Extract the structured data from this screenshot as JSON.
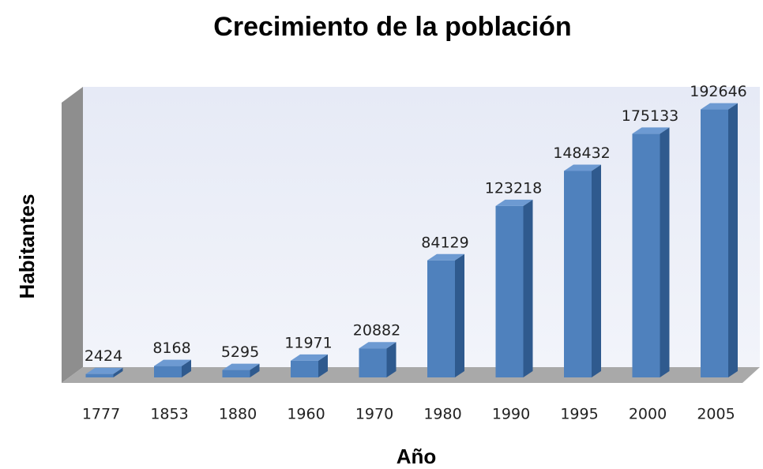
{
  "chart_data": {
    "type": "bar3d",
    "title": "Crecimiento de la población",
    "x_label": "Año",
    "y_label": "Habitantes",
    "categories": [
      "1777",
      "1853",
      "1880",
      "1960",
      "1970",
      "1980",
      "1990",
      "1995",
      "2000",
      "2005"
    ],
    "values": [
      2424,
      8168,
      5295,
      11971,
      20882,
      84129,
      123218,
      148432,
      175133,
      192646
    ],
    "color": "#4f81bd",
    "ylim": [
      0,
      210000
    ]
  }
}
